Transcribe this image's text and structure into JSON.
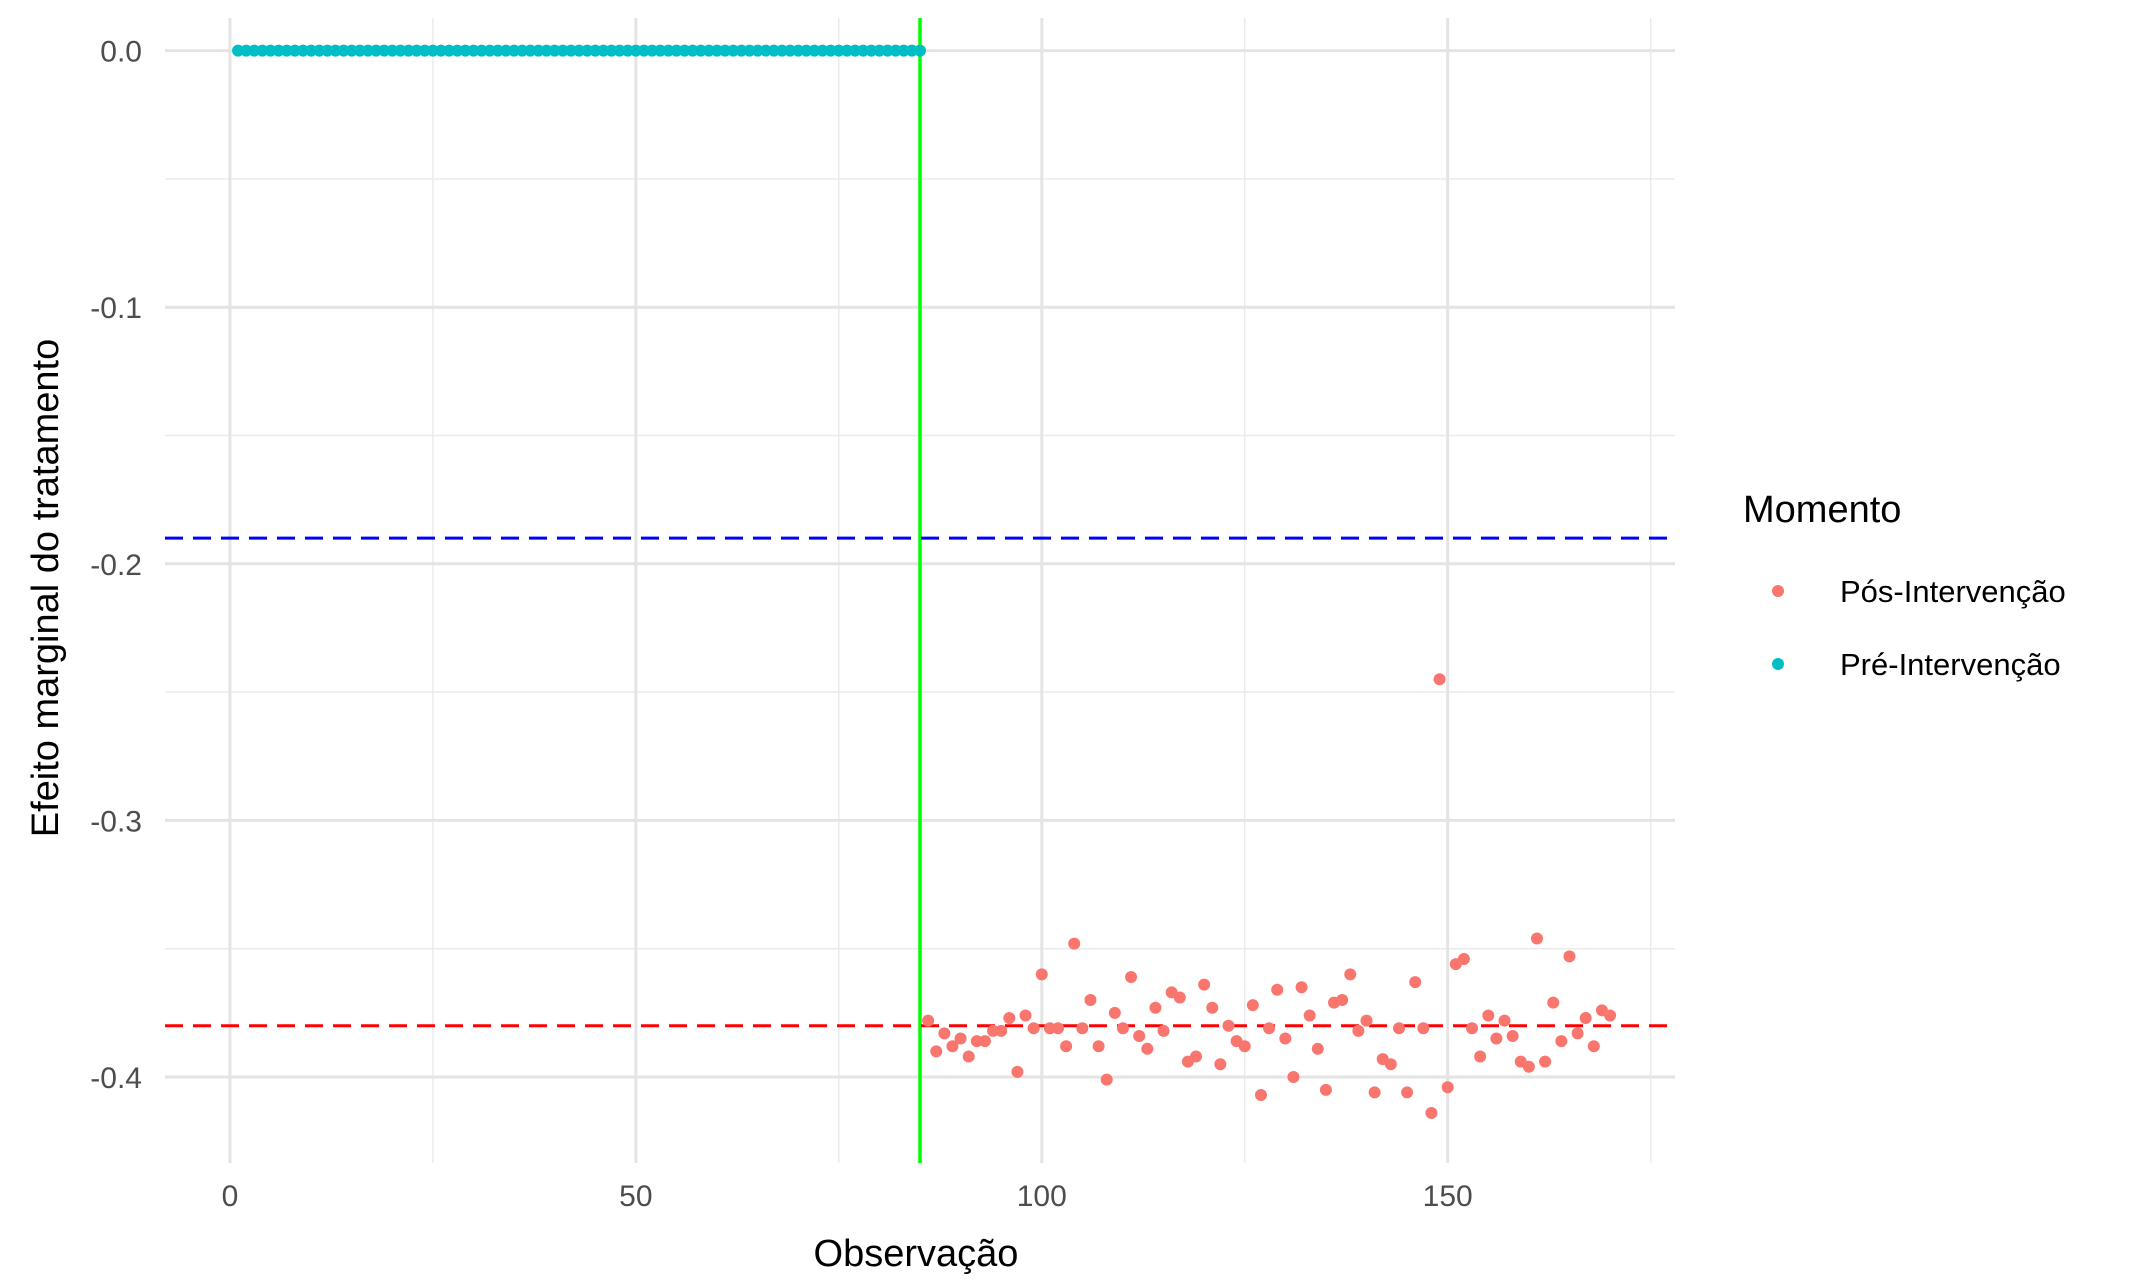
{
  "chart_data": {
    "type": "scatter",
    "xlabel": "Observação",
    "ylabel": "Efeito marginal do tratamento",
    "xlim": [
      -8,
      178
    ],
    "ylim": [
      -0.4335,
      0.0127
    ],
    "x_ticks": [
      0,
      50,
      100,
      150
    ],
    "x_tick_labels": [
      "0",
      "50",
      "100",
      "150"
    ],
    "x_minor_ticks": [
      25,
      75,
      125,
      175
    ],
    "y_ticks": [
      0.0,
      -0.1,
      -0.2,
      -0.3,
      -0.4
    ],
    "y_tick_labels": [
      "0.0",
      "-0.1",
      "-0.2",
      "-0.3",
      "-0.4"
    ],
    "y_minor_ticks": [
      -0.05,
      -0.15,
      -0.25,
      -0.35
    ],
    "grid": true,
    "legend": {
      "title": "Momento",
      "placement": "right",
      "entries": [
        "Pós-Intervenção",
        "Pré-Intervenção"
      ]
    },
    "reference_lines": [
      {
        "orientation": "vertical",
        "x": 85,
        "color": "#00ff00",
        "style": "solid"
      },
      {
        "orientation": "horizontal",
        "y": -0.19,
        "color": "#0000ff",
        "style": "dashed"
      },
      {
        "orientation": "horizontal",
        "y": -0.38,
        "color": "#ff0000",
        "style": "dashed"
      }
    ],
    "series": [
      {
        "name": "Pré-Intervenção",
        "color": "#00bfc4",
        "x": [
          1,
          2,
          3,
          4,
          5,
          6,
          7,
          8,
          9,
          10,
          11,
          12,
          13,
          14,
          15,
          16,
          17,
          18,
          19,
          20,
          21,
          22,
          23,
          24,
          25,
          26,
          27,
          28,
          29,
          30,
          31,
          32,
          33,
          34,
          35,
          36,
          37,
          38,
          39,
          40,
          41,
          42,
          43,
          44,
          45,
          46,
          47,
          48,
          49,
          50,
          51,
          52,
          53,
          54,
          55,
          56,
          57,
          58,
          59,
          60,
          61,
          62,
          63,
          64,
          65,
          66,
          67,
          68,
          69,
          70,
          71,
          72,
          73,
          74,
          75,
          76,
          77,
          78,
          79,
          80,
          81,
          82,
          83,
          84,
          85
        ],
        "y": [
          0,
          0,
          0,
          0,
          0,
          0,
          0,
          0,
          0,
          0,
          0,
          0,
          0,
          0,
          0,
          0,
          0,
          0,
          0,
          0,
          0,
          0,
          0,
          0,
          0,
          0,
          0,
          0,
          0,
          0,
          0,
          0,
          0,
          0,
          0,
          0,
          0,
          0,
          0,
          0,
          0,
          0,
          0,
          0,
          0,
          0,
          0,
          0,
          0,
          0,
          0,
          0,
          0,
          0,
          0,
          0,
          0,
          0,
          0,
          0,
          0,
          0,
          0,
          0,
          0,
          0,
          0,
          0,
          0,
          0,
          0,
          0,
          0,
          0,
          0,
          0,
          0,
          0,
          0,
          0,
          0,
          0,
          0,
          0,
          0
        ]
      },
      {
        "name": "Pós-Intervenção",
        "color": "#f8766d",
        "x": [
          86,
          87,
          88,
          89,
          90,
          91,
          92,
          93,
          94,
          95,
          96,
          97,
          98,
          99,
          100,
          101,
          102,
          103,
          104,
          105,
          106,
          107,
          108,
          109,
          110,
          111,
          112,
          113,
          114,
          115,
          116,
          117,
          118,
          119,
          120,
          121,
          122,
          123,
          124,
          125,
          126,
          127,
          128,
          129,
          130,
          131,
          132,
          133,
          134,
          135,
          136,
          137,
          138,
          139,
          140,
          141,
          142,
          143,
          144,
          145,
          146,
          147,
          148,
          149,
          150,
          151,
          152,
          153,
          154,
          155,
          156,
          157,
          158,
          159,
          160,
          161,
          162,
          163,
          164,
          165,
          166,
          167,
          168,
          169,
          170
        ],
        "y": [
          -0.378,
          -0.39,
          -0.383,
          -0.388,
          -0.385,
          -0.392,
          -0.386,
          -0.386,
          -0.382,
          -0.382,
          -0.377,
          -0.398,
          -0.376,
          -0.381,
          -0.36,
          -0.381,
          -0.381,
          -0.388,
          -0.348,
          -0.381,
          -0.37,
          -0.388,
          -0.401,
          -0.375,
          -0.381,
          -0.361,
          -0.384,
          -0.389,
          -0.373,
          -0.382,
          -0.367,
          -0.369,
          -0.394,
          -0.392,
          -0.364,
          -0.373,
          -0.395,
          -0.38,
          -0.386,
          -0.388,
          -0.372,
          -0.407,
          -0.381,
          -0.366,
          -0.385,
          -0.4,
          -0.365,
          -0.376,
          -0.389,
          -0.405,
          -0.371,
          -0.37,
          -0.36,
          -0.382,
          -0.378,
          -0.406,
          -0.393,
          -0.395,
          -0.381,
          -0.406,
          -0.363,
          -0.381,
          -0.414,
          -0.245,
          -0.404,
          -0.356,
          -0.354,
          -0.381,
          -0.392,
          -0.376,
          -0.385,
          -0.378,
          -0.384,
          -0.394,
          -0.396,
          -0.346,
          -0.394,
          -0.371,
          -0.386,
          -0.353,
          -0.383,
          -0.377,
          -0.388,
          -0.374,
          -0.376
        ]
      }
    ]
  }
}
